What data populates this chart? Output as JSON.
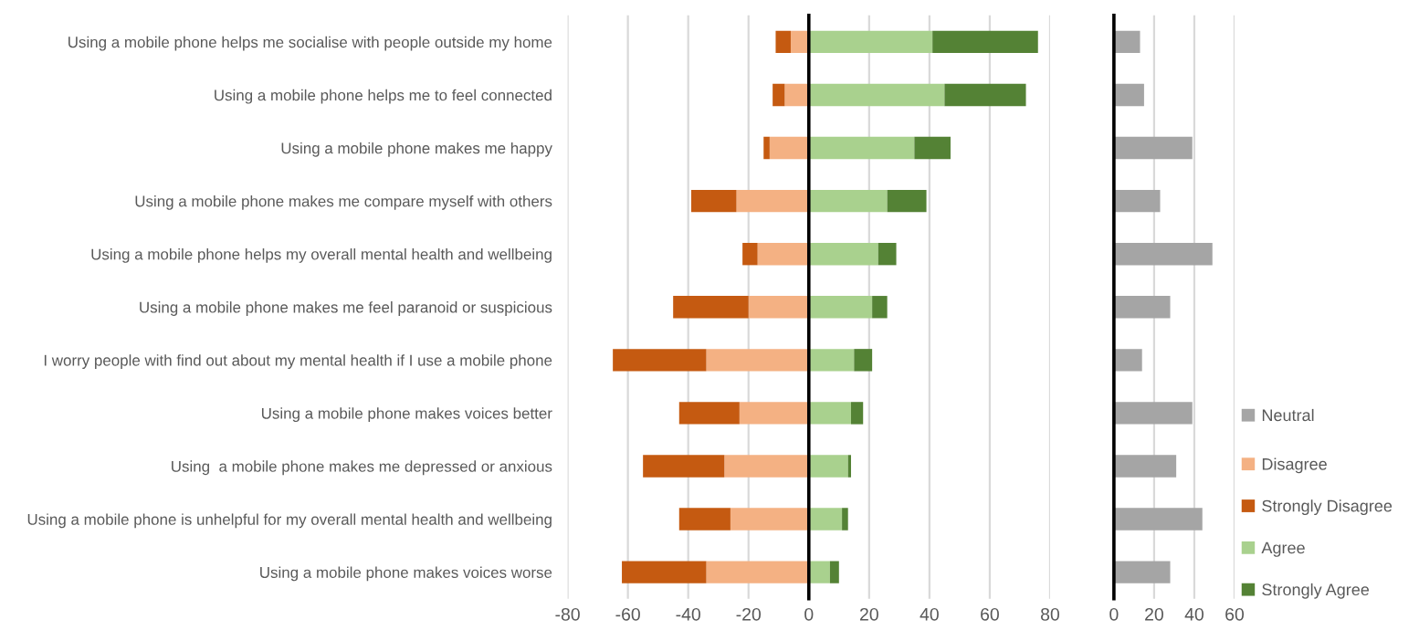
{
  "chart_data": [
    {
      "type": "bar",
      "orientation": "horizontal",
      "stacked": true,
      "categories": [
        "Using a mobile phone helps me socialise with people outside my home",
        "Using a mobile phone helps me to feel connected",
        "Using a mobile phone makes me happy",
        "Using a mobile phone makes me compare myself with others",
        "Using a mobile phone helps my overall mental health and wellbeing",
        "Using a mobile phone makes me feel paranoid or suspicious",
        "I worry people with find out about my mental health if I use a mobile phone",
        "Using a mobile phone makes voices better",
        "Using  a mobile phone makes me depressed or anxious",
        "Using a mobile phone is unhelpful for my overall mental health and wellbeing",
        "Using a mobile phone makes voices worse"
      ],
      "series": [
        {
          "name": "Disagree",
          "color": "#f4b183",
          "values": [
            -6,
            -8,
            -13,
            -24,
            -17,
            -20,
            -34,
            -23,
            -28,
            -26,
            -34
          ]
        },
        {
          "name": "Strongly Disagree",
          "color": "#c55a11",
          "values": [
            -5,
            -4,
            -2,
            -15,
            -5,
            -25,
            -31,
            -20,
            -27,
            -17,
            -28
          ]
        },
        {
          "name": "Agree",
          "color": "#a9d18e",
          "values": [
            41,
            45,
            35,
            26,
            23,
            21,
            15,
            14,
            13,
            11,
            7
          ]
        },
        {
          "name": "Strongly Agree",
          "color": "#548235",
          "values": [
            35,
            27,
            12,
            13,
            6,
            5,
            6,
            4,
            1,
            2,
            3
          ]
        }
      ],
      "xlim": [
        -80,
        80
      ],
      "xticks": [
        -80,
        -60,
        -40,
        -20,
        0,
        20,
        40,
        60,
        80
      ],
      "grid": "x",
      "legend": "bottom right",
      "ref_lines": [
        {
          "axis": "x",
          "value": 0,
          "color": "#000000"
        }
      ]
    },
    {
      "type": "bar",
      "orientation": "horizontal",
      "categories": [
        null,
        null,
        null,
        null,
        null,
        null,
        null,
        null,
        null,
        null,
        null
      ],
      "series": [
        {
          "name": "Neutral",
          "color": "#a5a5a5",
          "values": [
            13,
            15,
            39,
            23,
            49,
            28,
            14,
            39,
            31,
            44,
            28
          ]
        }
      ],
      "xlim": [
        0,
        60
      ],
      "xticks": [
        0,
        20,
        40,
        60
      ],
      "grid": "x",
      "legend": "bottom right"
    }
  ]
}
